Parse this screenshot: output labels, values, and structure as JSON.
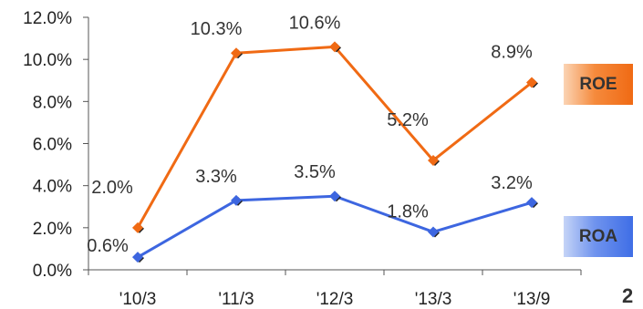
{
  "chart_data": {
    "type": "line",
    "categories": [
      "'10/3",
      "'11/3",
      "'12/3",
      "'13/3",
      "'13/9"
    ],
    "series": [
      {
        "name": "ROE",
        "values": [
          2.0,
          10.3,
          10.6,
          5.2,
          8.9
        ],
        "labels": [
          "2.0%",
          "10.3%",
          "10.6%",
          "5.2%",
          "8.9%"
        ],
        "color": "#f06a14"
      },
      {
        "name": "ROA",
        "values": [
          0.6,
          3.3,
          3.5,
          1.8,
          3.2
        ],
        "labels": [
          "0.6%",
          "3.3%",
          "3.5%",
          "1.8%",
          "3.2%"
        ],
        "color": "#3d66e0"
      }
    ],
    "ylim": [
      0,
      12
    ],
    "yticks": [
      "0.0%",
      "2.0%",
      "4.0%",
      "6.0%",
      "8.0%",
      "10.0%",
      "12.0%"
    ],
    "grid": false,
    "legend": "right"
  },
  "legend": {
    "roe": "ROE",
    "roa": "ROA"
  },
  "page_number": "2"
}
